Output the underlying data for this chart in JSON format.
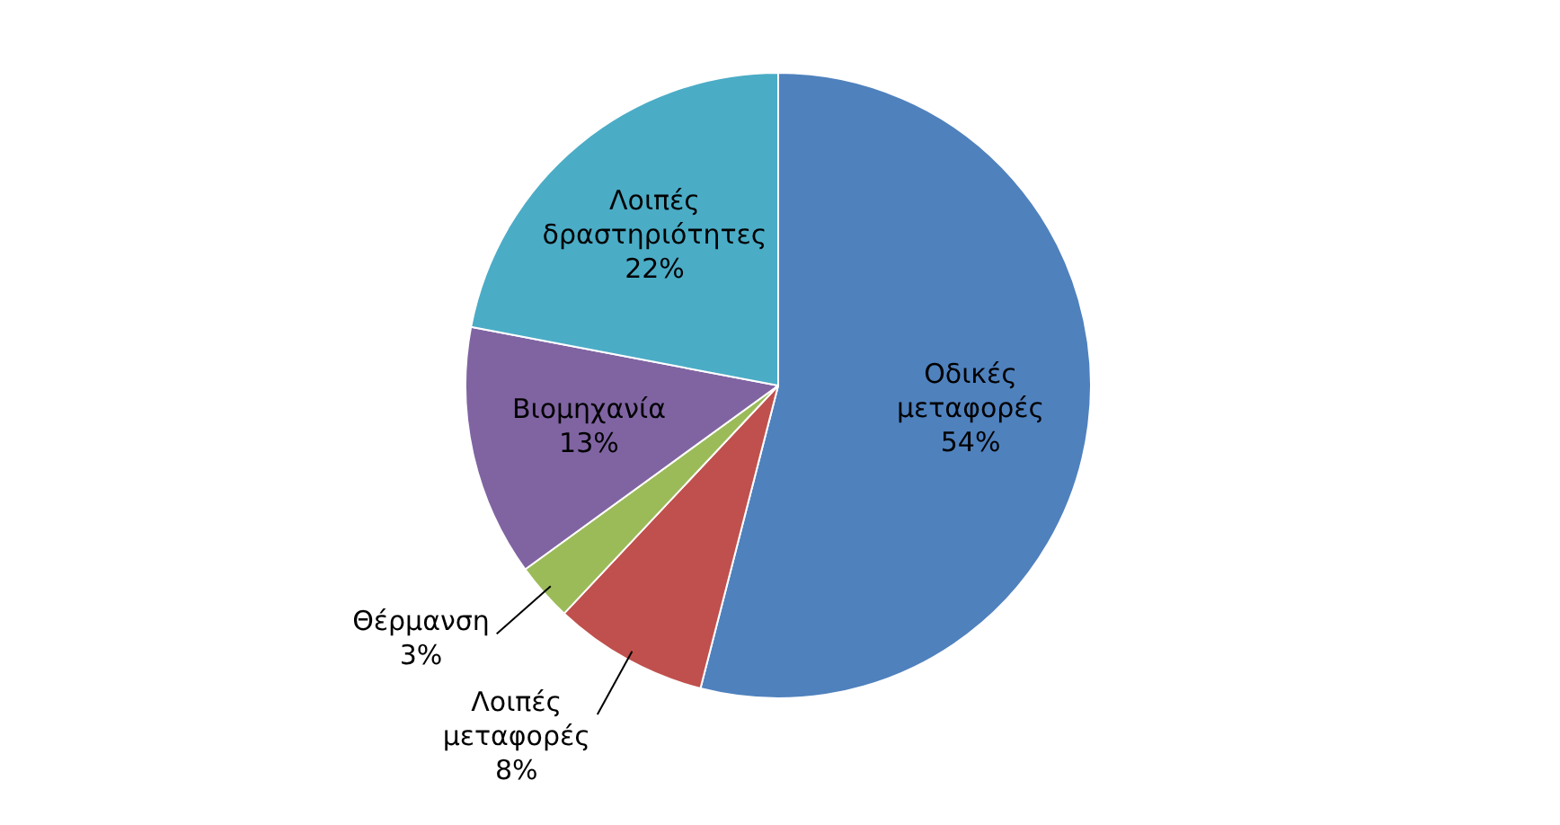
{
  "chart_data": {
    "type": "pie",
    "categories": [
      "Οδικές μεταφορές",
      "Λοιπές μεταφορές",
      "Θέρμανση",
      "Βιομηχανία",
      "Λοιπές δραστηριότητες"
    ],
    "values": [
      54,
      8,
      3,
      13,
      22
    ],
    "colors": [
      "#4f81bd",
      "#c0504d",
      "#9bbb59",
      "#8064a2",
      "#4bacc6"
    ],
    "value_labels": [
      "54%",
      "8%",
      "3%",
      "13%",
      "22%"
    ],
    "legend": false
  }
}
